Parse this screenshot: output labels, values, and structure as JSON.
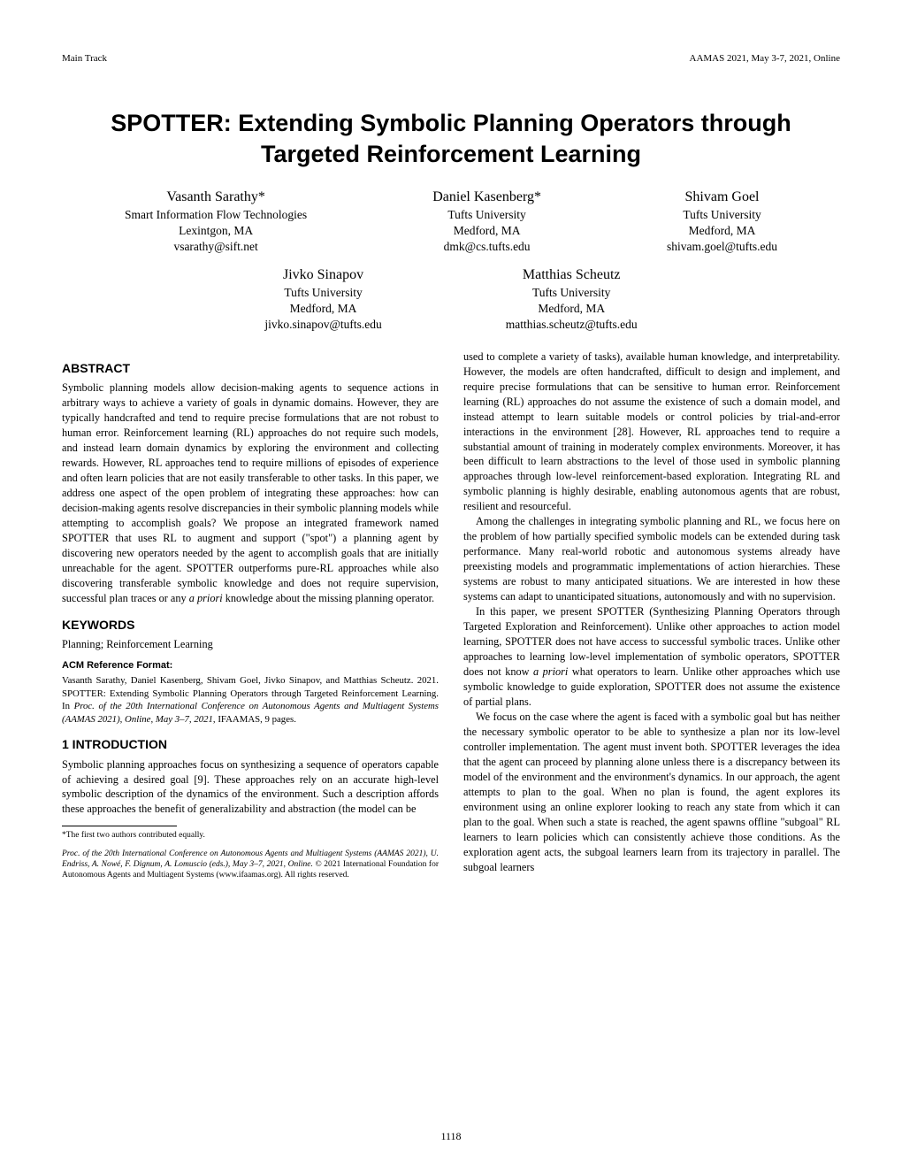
{
  "header": {
    "left": "Main Track",
    "right": "AAMAS 2021, May 3-7, 2021, Online"
  },
  "title": "SPOTTER: Extending Symbolic Planning Operators through Targeted Reinforcement Learning",
  "authors_row1": [
    {
      "name": "Vasanth Sarathy*",
      "affiliation": "Smart Information Flow Technologies",
      "location": "Lexintgon, MA",
      "email": "vsarathy@sift.net"
    },
    {
      "name": "Daniel Kasenberg*",
      "affiliation": "Tufts University",
      "location": "Medford, MA",
      "email": "dmk@cs.tufts.edu"
    },
    {
      "name": "Shivam Goel",
      "affiliation": "Tufts University",
      "location": "Medford, MA",
      "email": "shivam.goel@tufts.edu"
    }
  ],
  "authors_row2": [
    {
      "name": "Jivko Sinapov",
      "affiliation": "Tufts University",
      "location": "Medford, MA",
      "email": "jivko.sinapov@tufts.edu"
    },
    {
      "name": "Matthias Scheutz",
      "affiliation": "Tufts University",
      "location": "Medford, MA",
      "email": "matthias.scheutz@tufts.edu"
    }
  ],
  "abstract_heading": "ABSTRACT",
  "abstract_text": "Symbolic planning models allow decision-making agents to sequence actions in arbitrary ways to achieve a variety of goals in dynamic domains. However, they are typically handcrafted and tend to require precise formulations that are not robust to human error. Reinforcement learning (RL) approaches do not require such models, and instead learn domain dynamics by exploring the environment and collecting rewards. However, RL approaches tend to require millions of episodes of experience and often learn policies that are not easily transferable to other tasks. In this paper, we address one aspect of the open problem of integrating these approaches: how can decision-making agents resolve discrepancies in their symbolic planning models while attempting to accomplish goals? We propose an integrated framework named SPOTTER that uses RL to augment and support (\"spot\") a planning agent by discovering new operators needed by the agent to accomplish goals that are initially unreachable for the agent. SPOTTER outperforms pure-RL approaches while also discovering transferable symbolic knowledge and does not require supervision, successful plan traces or any a priori knowledge about the missing planning operator.",
  "keywords_heading": "KEYWORDS",
  "keywords_text": "Planning; Reinforcement Learning",
  "acm_heading": "ACM Reference Format:",
  "acm_text": "Vasanth Sarathy, Daniel Kasenberg, Shivam Goel, Jivko Sinapov, and Matthias Scheutz. 2021. SPOTTER: Extending Symbolic Planning Operators through Targeted Reinforcement Learning. In Proc. of the 20th International Conference on Autonomous Agents and Multiagent Systems (AAMAS 2021), Online, May 3–7, 2021, IFAAMAS, 9 pages.",
  "intro_heading": "1   INTRODUCTION",
  "intro_para1": "Symbolic planning approaches focus on synthesizing a sequence of operators capable of achieving a desired goal [9]. These approaches rely on an accurate high-level symbolic description of the dynamics of the environment. Such a description affords these approaches the benefit of generalizability and abstraction (the model can be",
  "footnote1": "*The first two authors contributed equally.",
  "footnote2": "Proc. of the 20th International Conference on Autonomous Agents and Multiagent Systems (AAMAS 2021), U. Endriss, A. Nowé, F. Dignum, A. Lomuscio (eds.), May 3–7, 2021, Online. © 2021 International Foundation for Autonomous Agents and Multiagent Systems (www.ifaamas.org). All rights reserved.",
  "col2_para1": "used to complete a variety of tasks), available human knowledge, and interpretability. However, the models are often handcrafted, difficult to design and implement, and require precise formulations that can be sensitive to human error. Reinforcement learning (RL) approaches do not assume the existence of such a domain model, and instead attempt to learn suitable models or control policies by trial-and-error interactions in the environment [28]. However, RL approaches tend to require a substantial amount of training in moderately complex environments. Moreover, it has been difficult to learn abstractions to the level of those used in symbolic planning approaches through low-level reinforcement-based exploration. Integrating RL and symbolic planning is highly desirable, enabling autonomous agents that are robust, resilient and resourceful.",
  "col2_para2": "Among the challenges in integrating symbolic planning and RL, we focus here on the problem of how partially specified symbolic models can be extended during task performance. Many real-world robotic and autonomous systems already have preexisting models and programmatic implementations of action hierarchies. These systems are robust to many anticipated situations. We are interested in how these systems can adapt to unanticipated situations, autonomously and with no supervision.",
  "col2_para3": "In this paper, we present SPOTTER (Synthesizing Planning Operators through Targeted Exploration and Reinforcement). Unlike other approaches to action model learning, SPOTTER does not have access to successful symbolic traces. Unlike other approaches to learning low-level implementation of symbolic operators, SPOTTER does not know a priori what operators to learn. Unlike other approaches which use symbolic knowledge to guide exploration, SPOTTER does not assume the existence of partial plans.",
  "col2_para4": "We focus on the case where the agent is faced with a symbolic goal but has neither the necessary symbolic operator to be able to synthesize a plan nor its low-level controller implementation. The agent must invent both. SPOTTER leverages the idea that the agent can proceed by planning alone unless there is a discrepancy between its model of the environment and the environment's dynamics. In our approach, the agent attempts to plan to the goal. When no plan is found, the agent explores its environment using an online explorer looking to reach any state from which it can plan to the goal. When such a state is reached, the agent spawns offline \"subgoal\" RL learners to learn policies which can consistently achieve those conditions. As the exploration agent acts, the subgoal learners learn from its trajectory in parallel. The subgoal learners",
  "page_number": "1118"
}
